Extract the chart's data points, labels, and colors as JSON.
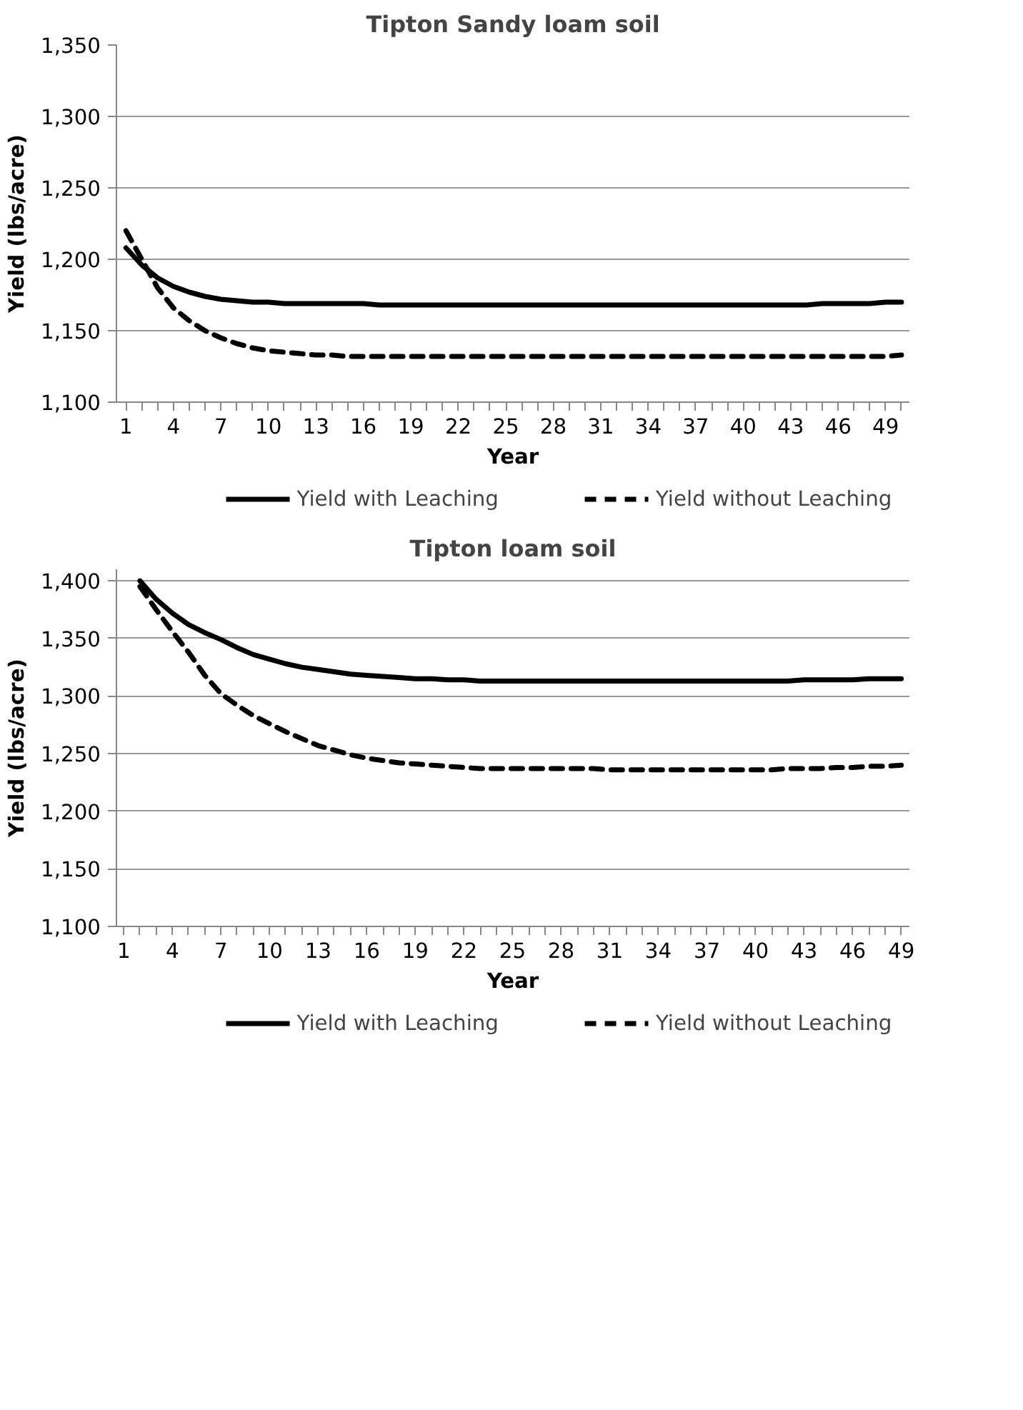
{
  "chart_data": [
    {
      "type": "line",
      "title": "Tipton Sandy loam soil",
      "xlabel": "Year",
      "ylabel": "Yield (lbs/acre)",
      "grid": "y",
      "legend": "bottom",
      "marker": "none",
      "x": [
        1,
        2,
        3,
        4,
        5,
        6,
        7,
        8,
        9,
        10,
        11,
        12,
        13,
        14,
        15,
        16,
        17,
        18,
        19,
        20,
        21,
        22,
        23,
        24,
        25,
        26,
        27,
        28,
        29,
        30,
        31,
        32,
        33,
        34,
        35,
        36,
        37,
        38,
        39,
        40,
        41,
        42,
        43,
        44,
        45,
        46,
        47,
        48,
        49,
        50
      ],
      "xlim": [
        0.4,
        50.5
      ],
      "xticks": [
        1,
        {
          "value": 2,
          "label": null
        },
        {
          "value": 3,
          "label": null
        },
        4,
        {
          "value": 5,
          "label": null
        },
        {
          "value": 6,
          "label": null
        },
        7,
        {
          "value": 8,
          "label": null
        },
        {
          "value": 9,
          "label": null
        },
        10,
        {
          "value": 11,
          "label": null
        },
        {
          "value": 12,
          "label": null
        },
        13,
        {
          "value": 14,
          "label": null
        },
        {
          "value": 15,
          "label": null
        },
        16,
        {
          "value": 17,
          "label": null
        },
        {
          "value": 18,
          "label": null
        },
        19,
        {
          "value": 20,
          "label": null
        },
        {
          "value": 21,
          "label": null
        },
        22,
        {
          "value": 23,
          "label": null
        },
        {
          "value": 24,
          "label": null
        },
        25,
        {
          "value": 26,
          "label": null
        },
        {
          "value": 27,
          "label": null
        },
        28,
        {
          "value": 29,
          "label": null
        },
        {
          "value": 30,
          "label": null
        },
        31,
        {
          "value": 32,
          "label": null
        },
        {
          "value": 33,
          "label": null
        },
        34,
        {
          "value": 35,
          "label": null
        },
        {
          "value": 36,
          "label": null
        },
        37,
        {
          "value": 38,
          "label": null
        },
        {
          "value": 39,
          "label": null
        },
        40,
        {
          "value": 41,
          "label": null
        },
        {
          "value": 42,
          "label": null
        },
        43,
        {
          "value": 44,
          "label": null
        },
        {
          "value": 45,
          "label": null
        },
        46,
        {
          "value": 47,
          "label": null
        },
        {
          "value": 48,
          "label": null
        },
        49,
        {
          "value": 50,
          "label": null
        }
      ],
      "ylim": [
        1100,
        1350
      ],
      "yticks": [
        {
          "value": 1100,
          "label": "1,100"
        },
        {
          "value": 1150,
          "label": "1,150"
        },
        {
          "value": 1200,
          "label": "1,200"
        },
        {
          "value": 1250,
          "label": "1,250"
        },
        {
          "value": 1300,
          "label": "1,300"
        },
        {
          "value": 1350,
          "label": "1,350"
        }
      ],
      "series": [
        {
          "name": "Yield with Leaching",
          "color": "#000000",
          "line_style": "solid",
          "values": [
            1208,
            1196,
            1187,
            1181,
            1177,
            1174,
            1172,
            1171,
            1170,
            1170,
            1169,
            1169,
            1169,
            1169,
            1169,
            1169,
            1168,
            1168,
            1168,
            1168,
            1168,
            1168,
            1168,
            1168,
            1168,
            1168,
            1168,
            1168,
            1168,
            1168,
            1168,
            1168,
            1168,
            1168,
            1168,
            1168,
            1168,
            1168,
            1168,
            1168,
            1168,
            1168,
            1168,
            1168,
            1169,
            1169,
            1169,
            1169,
            1170,
            1170
          ]
        },
        {
          "name": "Yield without Leaching",
          "color": "#000000",
          "line_style": "dashed",
          "values": [
            1220,
            1200,
            1180,
            1166,
            1157,
            1150,
            1145,
            1141,
            1138,
            1136,
            1135,
            1134,
            1133,
            1133,
            1132,
            1132,
            1132,
            1132,
            1132,
            1132,
            1132,
            1132,
            1132,
            1132,
            1132,
            1132,
            1132,
            1132,
            1132,
            1132,
            1132,
            1132,
            1132,
            1132,
            1132,
            1132,
            1132,
            1132,
            1132,
            1132,
            1132,
            1132,
            1132,
            1132,
            1132,
            1132,
            1132,
            1132,
            1132,
            1133
          ]
        }
      ]
    },
    {
      "type": "line",
      "title": "Tipton loam soil",
      "xlabel": "Year",
      "ylabel": "Yield (lbs/acre)",
      "grid": "y",
      "legend": "bottom",
      "marker": "none",
      "xlim": [
        0.55,
        49.5
      ],
      "xticks": [
        1,
        {
          "value": 2,
          "label": null
        },
        {
          "value": 3,
          "label": null
        },
        4,
        {
          "value": 5,
          "label": null
        },
        {
          "value": 6,
          "label": null
        },
        7,
        {
          "value": 8,
          "label": null
        },
        {
          "value": 9,
          "label": null
        },
        10,
        {
          "value": 11,
          "label": null
        },
        {
          "value": 12,
          "label": null
        },
        13,
        {
          "value": 14,
          "label": null
        },
        {
          "value": 15,
          "label": null
        },
        16,
        {
          "value": 17,
          "label": null
        },
        {
          "value": 18,
          "label": null
        },
        19,
        {
          "value": 20,
          "label": null
        },
        {
          "value": 21,
          "label": null
        },
        22,
        {
          "value": 23,
          "label": null
        },
        {
          "value": 24,
          "label": null
        },
        25,
        {
          "value": 26,
          "label": null
        },
        {
          "value": 27,
          "label": null
        },
        28,
        {
          "value": 29,
          "label": null
        },
        {
          "value": 30,
          "label": null
        },
        31,
        {
          "value": 32,
          "label": null
        },
        {
          "value": 33,
          "label": null
        },
        34,
        {
          "value": 35,
          "label": null
        },
        {
          "value": 36,
          "label": null
        },
        37,
        {
          "value": 38,
          "label": null
        },
        {
          "value": 39,
          "label": null
        },
        40,
        {
          "value": 41,
          "label": null
        },
        {
          "value": 42,
          "label": null
        },
        43,
        {
          "value": 44,
          "label": null
        },
        {
          "value": 45,
          "label": null
        },
        46,
        {
          "value": 47,
          "label": null
        },
        {
          "value": 48,
          "label": null
        },
        49
      ],
      "ylim": [
        1100,
        1410
      ],
      "yticks": [
        {
          "value": 1100,
          "label": "1,100"
        },
        {
          "value": 1150,
          "label": "1,150"
        },
        {
          "value": 1200,
          "label": "1,200"
        },
        {
          "value": 1250,
          "label": "1,250"
        },
        {
          "value": 1300,
          "label": "1,300"
        },
        {
          "value": 1350,
          "label": "1,350"
        },
        {
          "value": 1400,
          "label": "1,400"
        }
      ],
      "series": [
        {
          "name": "Yield with Leaching",
          "color": "#000000",
          "line_style": "solid",
          "x": [
            2,
            3,
            4,
            5,
            6,
            7,
            8,
            9,
            10,
            11,
            12,
            13,
            14,
            15,
            16,
            17,
            18,
            19,
            20,
            21,
            22,
            23,
            24,
            25,
            26,
            27,
            28,
            29,
            30,
            31,
            32,
            33,
            34,
            35,
            36,
            37,
            38,
            39,
            40,
            41,
            42,
            43,
            44,
            45,
            46,
            47,
            48,
            49
          ],
          "values": [
            1400,
            1384,
            1372,
            1362,
            1355,
            1349,
            1342,
            1336,
            1332,
            1328,
            1325,
            1323,
            1321,
            1319,
            1318,
            1317,
            1316,
            1315,
            1315,
            1314,
            1314,
            1313,
            1313,
            1313,
            1313,
            1313,
            1313,
            1313,
            1313,
            1313,
            1313,
            1313,
            1313,
            1313,
            1313,
            1313,
            1313,
            1313,
            1313,
            1313,
            1313,
            1314,
            1314,
            1314,
            1314,
            1315,
            1315,
            1315
          ]
        },
        {
          "name": "Yield without Leaching",
          "color": "#000000",
          "line_style": "dashed",
          "x": [
            2,
            3,
            4,
            5,
            6,
            7,
            8,
            9,
            10,
            11,
            12,
            13,
            14,
            15,
            16,
            17,
            18,
            19,
            20,
            21,
            22,
            23,
            24,
            25,
            26,
            27,
            28,
            29,
            30,
            31,
            32,
            33,
            34,
            35,
            36,
            37,
            38,
            39,
            40,
            41,
            42,
            43,
            44,
            45,
            46,
            47,
            48,
            49
          ],
          "values": [
            1395,
            1375,
            1356,
            1338,
            1318,
            1302,
            1292,
            1283,
            1276,
            1269,
            1263,
            1257,
            1253,
            1249,
            1246,
            1244,
            1242,
            1241,
            1240,
            1239,
            1238,
            1237,
            1237,
            1237,
            1237,
            1237,
            1237,
            1237,
            1237,
            1236,
            1236,
            1236,
            1236,
            1236,
            1236,
            1236,
            1236,
            1236,
            1236,
            1236,
            1237,
            1237,
            1237,
            1238,
            1238,
            1239,
            1239,
            1240
          ]
        }
      ]
    }
  ]
}
